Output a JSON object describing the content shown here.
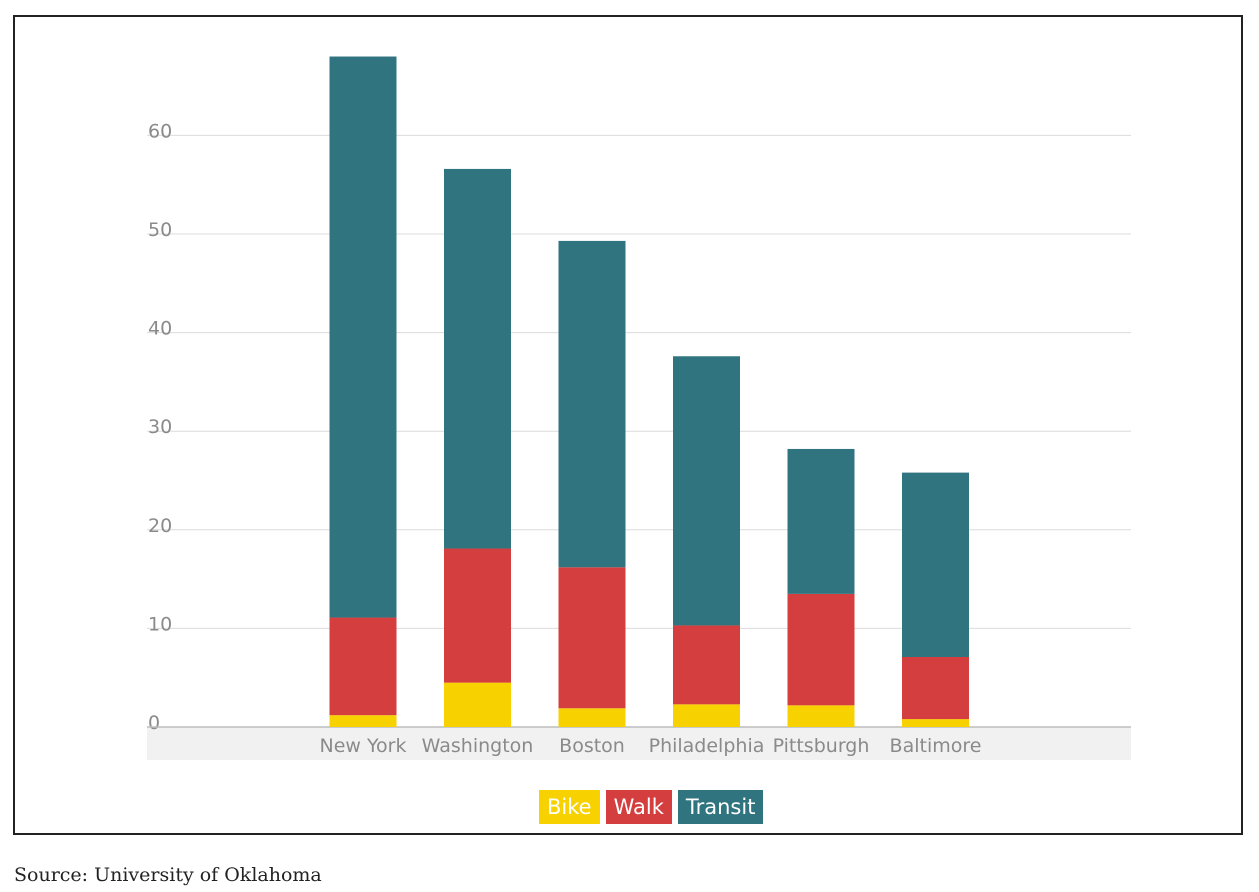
{
  "chart_data": {
    "type": "bar",
    "stacked": true,
    "categories": [
      "New York",
      "Washington",
      "Boston",
      "Philadelphia",
      "Pittsburgh",
      "Baltimore"
    ],
    "series": [
      {
        "name": "Bike",
        "color": "#f7d100",
        "values": [
          1.2,
          4.5,
          1.9,
          2.3,
          2.2,
          0.8
        ]
      },
      {
        "name": "Walk",
        "color": "#d43e3e",
        "values": [
          9.9,
          13.6,
          14.3,
          8.0,
          11.3,
          6.3
        ]
      },
      {
        "name": "Transit",
        "color": "#307480",
        "values": [
          56.9,
          38.5,
          33.1,
          27.3,
          14.7,
          18.7
        ]
      }
    ],
    "yticks": [
      0,
      10,
      20,
      30,
      40,
      50,
      60
    ],
    "ylim": [
      0,
      68
    ],
    "grid": true,
    "legend_position": "bottom-center",
    "source": "Source: University of Oklahoma"
  }
}
